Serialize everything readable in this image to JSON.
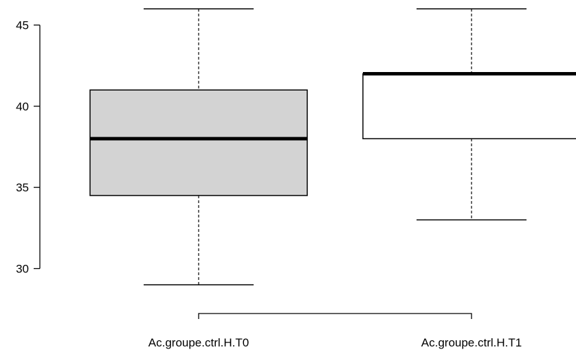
{
  "chart_data": {
    "type": "boxplot",
    "title": "",
    "xlabel": "",
    "ylabel": "",
    "ylim": [
      28.5,
      46.5
    ],
    "yticks": [
      30,
      35,
      40,
      45
    ],
    "categories": [
      "Ac.groupe.ctrl.H.T0",
      "Ac.groupe.ctrl.H.T1"
    ],
    "boxes": [
      {
        "label": "Ac.groupe.ctrl.H.T0",
        "whisker_low": 29,
        "q1": 34.5,
        "median": 38,
        "q3": 41,
        "whisker_high": 46,
        "fill": "#d3d3d3"
      },
      {
        "label": "Ac.groupe.ctrl.H.T1",
        "whisker_low": 33,
        "q1": 38,
        "median": 42,
        "q3": 42,
        "whisker_high": 46,
        "fill": "#ffffff"
      }
    ],
    "bracket": {
      "from": "Ac.groupe.ctrl.H.T0",
      "to": "Ac.groupe.ctrl.H.T1"
    },
    "grid": false
  }
}
